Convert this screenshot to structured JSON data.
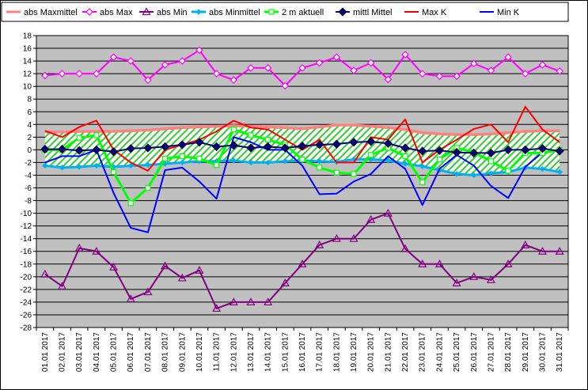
{
  "chart_data": {
    "type": "line",
    "categories": [
      "01.01 2017",
      "02.01 2017",
      "03.01 2017",
      "04.01 2017",
      "05.01 2017",
      "06.01 2017",
      "07.01 2017",
      "08.01 2017",
      "09.01 2017",
      "10.01 2017",
      "11.01 2017",
      "12.01 2017",
      "13.01 2017",
      "14.01 2017",
      "15.01 2017",
      "16.01 2017",
      "17.01 2017",
      "18.01 2017",
      "19.01 2017",
      "20.01 2017",
      "21.01 2017",
      "22.01 2017",
      "23.01 2017",
      "24.01 2017",
      "25.01 2017",
      "26.01 2017",
      "27.01 2017",
      "28.01 2017",
      "29.01 2017",
      "30.01 2017",
      "31.01 2017"
    ],
    "ylim": [
      -28,
      18
    ],
    "ytick_step": 2,
    "grid": true,
    "legend_position": "top",
    "background": "#c0c0c0",
    "band": {
      "upper_series": "abs Maxmittel",
      "lower_series": "abs Minmittel",
      "fill": "hatched-green"
    },
    "series": [
      {
        "name": "abs Maxmittel",
        "color": "#ff8080",
        "marker": "none",
        "style": "thick",
        "values": [
          2.8,
          2.8,
          2.9,
          2.9,
          2.9,
          3.0,
          3.1,
          3.3,
          3.5,
          3.6,
          3.7,
          3.8,
          3.7,
          3.6,
          3.5,
          3.3,
          3.6,
          3.9,
          3.9,
          3.7,
          3.5,
          3.2,
          2.7,
          2.5,
          2.4,
          2.4,
          2.5,
          2.7,
          2.9,
          3.0,
          3.0
        ]
      },
      {
        "name": "abs Max",
        "color": "#ff00ff",
        "marker": "diamond-open",
        "values": [
          11.7,
          12.0,
          12.0,
          12.0,
          14.6,
          14.0,
          11.0,
          13.4,
          14.0,
          15.7,
          12.0,
          11.0,
          12.9,
          12.9,
          10.1,
          12.9,
          13.7,
          14.6,
          12.5,
          13.7,
          11.1,
          15.0,
          12.0,
          11.6,
          11.6,
          13.6,
          12.5,
          14.6,
          12.0,
          13.4,
          12.4
        ]
      },
      {
        "name": "abs Min",
        "color": "#800080",
        "marker": "triangle-open",
        "values": [
          -19.6,
          -21.5,
          -15.5,
          -16.0,
          -18.5,
          -23.5,
          -22.4,
          -18.3,
          -20.2,
          -19.0,
          -25.0,
          -24.0,
          -24.0,
          -24.0,
          -21.0,
          -18.0,
          -15.0,
          -14.0,
          -14.0,
          -11.0,
          -10.0,
          -15.6,
          -18.0,
          -18.0,
          -21.0,
          -20.0,
          -20.5,
          -18.0,
          -15.0,
          -16.0,
          -16.0
        ]
      },
      {
        "name": "abs Minmittel",
        "color": "#00b0f0",
        "marker": "diamond-small",
        "style": "thick",
        "values": [
          -2.5,
          -2.8,
          -2.7,
          -2.5,
          -2.7,
          -2.5,
          -2.4,
          -2.2,
          -2.0,
          -1.8,
          -1.8,
          -1.7,
          -2.0,
          -2.0,
          -1.8,
          -1.7,
          -1.8,
          -1.9,
          -1.5,
          -1.5,
          -1.7,
          -2.2,
          -2.6,
          -3.2,
          -3.8,
          -4.0,
          -3.7,
          -3.5,
          -2.8,
          -3.0,
          -3.5
        ]
      },
      {
        "name": "2 m aktuell",
        "color": "#00ff00",
        "marker": "square-open",
        "style": "thick",
        "values": [
          0.0,
          0.0,
          1.9,
          2.3,
          -3.5,
          -8.4,
          -6.0,
          -1.4,
          -1.0,
          -1.4,
          -2.4,
          3.2,
          2.3,
          1.6,
          0.8,
          -1.5,
          -2.8,
          -3.6,
          -3.8,
          -0.8,
          0.3,
          -1.0,
          -5.1,
          -1.5,
          0.3,
          -0.4,
          -1.8,
          -3.3,
          -0.5,
          -0.5,
          0.0
        ]
      },
      {
        "name": "mittl Mittel",
        "color": "#000080",
        "marker": "diamond-filled",
        "values": [
          0.1,
          0.1,
          -0.1,
          0.0,
          -0.3,
          0.2,
          0.3,
          0.5,
          0.8,
          1.2,
          0.5,
          0.7,
          0.3,
          0.5,
          0.3,
          0.6,
          0.8,
          0.9,
          1.2,
          1.3,
          1.0,
          0.3,
          -0.2,
          -0.1,
          -0.4,
          -0.5,
          -0.5,
          0.0,
          0.0,
          0.2,
          -0.2
        ]
      },
      {
        "name": "Max K",
        "color": "#ff0000",
        "marker": "none",
        "values": [
          3.0,
          2.0,
          3.6,
          4.6,
          0.0,
          -2.0,
          -3.3,
          0.0,
          0.8,
          1.6,
          2.9,
          4.6,
          3.5,
          3.2,
          1.6,
          0.0,
          1.6,
          -2.0,
          -2.0,
          2.0,
          1.6,
          4.8,
          -2.0,
          0.0,
          1.6,
          3.3,
          4.0,
          1.2,
          6.8,
          3.2,
          1.2
        ]
      },
      {
        "name": "Min K",
        "color": "#0000ff",
        "marker": "none",
        "values": [
          -2.0,
          -1.0,
          -1.0,
          0.0,
          -6.8,
          -12.3,
          -13.0,
          -3.2,
          -2.8,
          -5.0,
          -7.7,
          2.0,
          1.2,
          0.0,
          0.0,
          -2.5,
          -7.0,
          -6.9,
          -5.0,
          -3.8,
          -1.0,
          -3.0,
          -8.7,
          -3.0,
          -0.8,
          -2.5,
          -5.7,
          -7.6,
          -2.7,
          -0.4,
          -0.1
        ]
      }
    ]
  }
}
